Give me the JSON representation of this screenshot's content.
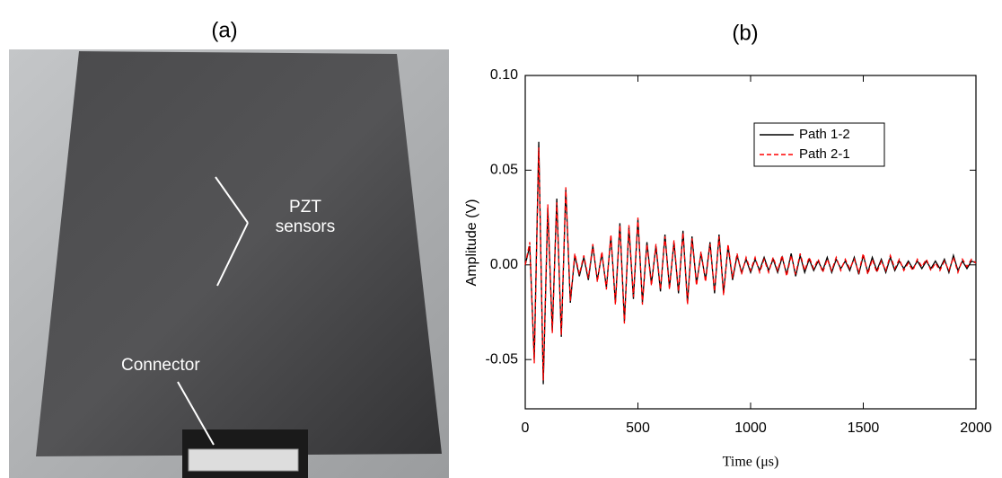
{
  "photo": {
    "label": "(a)",
    "sensor_label": "PZT sensors",
    "connector_label": "Connector"
  },
  "chart_data": {
    "type": "line",
    "panel_label": "(b)",
    "xlabel": "Time (μs)",
    "ylabel": "Amplitude (V)",
    "xlim": [
      0,
      2000
    ],
    "ylim": [
      -0.076,
      0.1
    ],
    "xticks": [
      0,
      500,
      1000,
      1500,
      2000
    ],
    "yticks": [
      {
        "value": 0.1,
        "label": "0.10"
      },
      0.05,
      {
        "value": 0,
        "label": "0.00"
      },
      -0.05
    ],
    "legend": "upper right",
    "x": [
      0,
      20,
      40,
      60,
      80,
      100,
      120,
      140,
      160,
      180,
      200,
      220,
      240,
      260,
      280,
      300,
      320,
      340,
      360,
      380,
      400,
      420,
      440,
      460,
      480,
      500,
      520,
      540,
      560,
      580,
      600,
      620,
      640,
      660,
      680,
      700,
      720,
      740,
      760,
      780,
      800,
      820,
      840,
      860,
      880,
      900,
      920,
      940,
      960,
      980,
      1000,
      1020,
      1040,
      1060,
      1080,
      1100,
      1120,
      1140,
      1160,
      1180,
      1200,
      1220,
      1240,
      1260,
      1280,
      1300,
      1320,
      1340,
      1360,
      1380,
      1400,
      1420,
      1440,
      1460,
      1480,
      1500,
      1520,
      1540,
      1560,
      1580,
      1600,
      1620,
      1640,
      1660,
      1680,
      1700,
      1720,
      1740,
      1760,
      1780,
      1800,
      1820,
      1840,
      1860,
      1880,
      1900,
      1920,
      1940,
      1960,
      1980,
      2000
    ],
    "series": [
      {
        "name": "Path 1-2",
        "color": "#000000",
        "line_style": "solid",
        "values": [
          0,
          0.01,
          -0.05,
          0.065,
          -0.063,
          0.03,
          -0.035,
          0.035,
          -0.038,
          0.04,
          -0.02,
          0.005,
          -0.006,
          0.004,
          -0.008,
          0.01,
          -0.008,
          0.006,
          -0.012,
          0.015,
          -0.02,
          0.022,
          -0.03,
          0.02,
          -0.018,
          0.024,
          -0.02,
          0.012,
          -0.01,
          0.01,
          -0.014,
          0.016,
          -0.012,
          0.012,
          -0.015,
          0.018,
          -0.02,
          0.015,
          -0.01,
          0.006,
          -0.008,
          0.012,
          -0.015,
          0.016,
          -0.015,
          0.01,
          -0.008,
          0.005,
          -0.004,
          0.003,
          -0.004,
          0.003,
          -0.003,
          0.004,
          -0.003,
          0.003,
          -0.004,
          0.004,
          -0.005,
          0.006,
          -0.006,
          0.005,
          -0.004,
          0.003,
          -0.003,
          0.002,
          -0.003,
          0.004,
          -0.004,
          0.003,
          -0.002,
          0.002,
          -0.003,
          0.004,
          -0.005,
          0.005,
          -0.004,
          0.004,
          -0.003,
          0.003,
          -0.004,
          0.004,
          -0.003,
          0.002,
          -0.002,
          0.002,
          -0.002,
          0.002,
          -0.002,
          0.002,
          -0.002,
          0.002,
          -0.002,
          0.003,
          -0.004,
          0.005,
          -0.003,
          0.002,
          -0.002,
          0.002,
          0.001
        ]
      },
      {
        "name": "Path 2-1",
        "color": "#ff0000",
        "line_style": "dashed",
        "values": [
          0,
          0.012,
          -0.052,
          0.062,
          -0.061,
          0.032,
          -0.036,
          0.033,
          -0.037,
          0.041,
          -0.019,
          0.006,
          -0.005,
          0.005,
          -0.007,
          0.011,
          -0.009,
          0.007,
          -0.013,
          0.016,
          -0.021,
          0.021,
          -0.031,
          0.021,
          -0.017,
          0.025,
          -0.021,
          0.011,
          -0.011,
          0.011,
          -0.013,
          0.015,
          -0.013,
          0.013,
          -0.014,
          0.017,
          -0.021,
          0.014,
          -0.011,
          0.007,
          -0.009,
          0.011,
          -0.014,
          0.015,
          -0.016,
          0.011,
          -0.007,
          0.006,
          -0.005,
          0.004,
          -0.003,
          0.004,
          -0.004,
          0.003,
          -0.004,
          0.004,
          -0.003,
          0.005,
          -0.006,
          0.005,
          -0.005,
          0.006,
          -0.003,
          0.004,
          -0.002,
          0.003,
          -0.004,
          0.003,
          -0.003,
          0.004,
          -0.003,
          0.003,
          -0.002,
          0.003,
          -0.004,
          0.006,
          -0.005,
          0.003,
          -0.004,
          0.002,
          -0.003,
          0.005,
          -0.002,
          0.003,
          -0.003,
          0.001,
          -0.003,
          0.003,
          -0.001,
          0.003,
          -0.003,
          0.001,
          -0.003,
          0.002,
          -0.003,
          0.004,
          -0.004,
          0.003,
          -0.001,
          0.003,
          0.001
        ]
      }
    ]
  }
}
